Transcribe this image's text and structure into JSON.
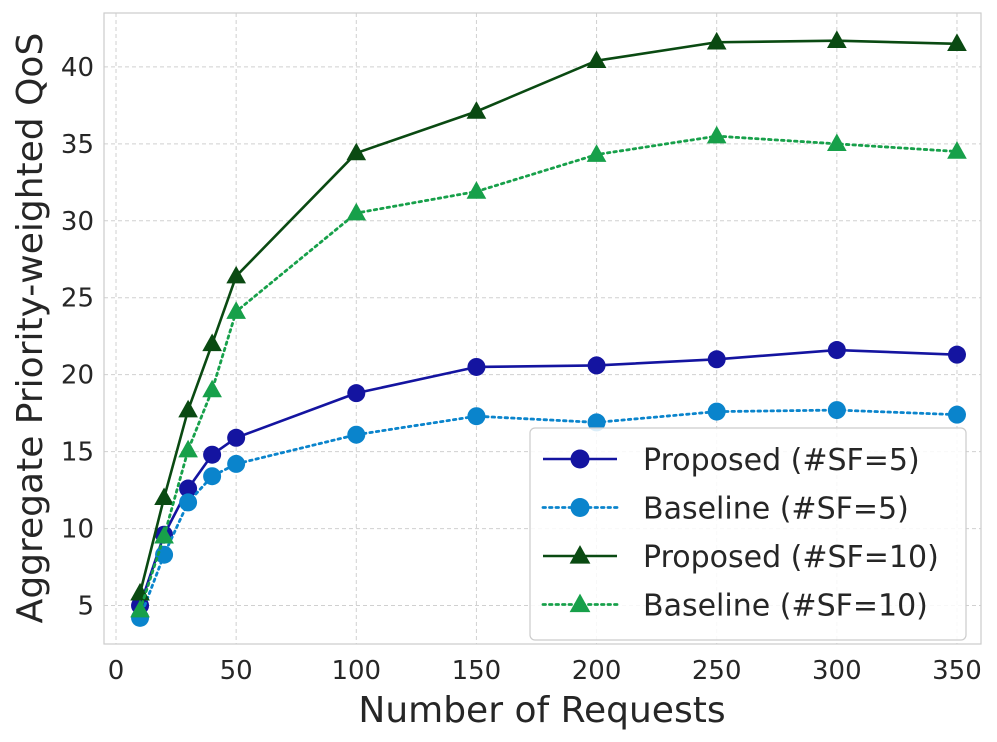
{
  "chart_data": {
    "type": "line",
    "title": "",
    "xlabel": "Number of Requests",
    "ylabel": "Aggregate Priority-weighted QoS",
    "xlim": [
      -5,
      360
    ],
    "ylim": [
      2.5,
      43.5
    ],
    "xticks": [
      0,
      50,
      100,
      150,
      200,
      250,
      300,
      350
    ],
    "yticks": [
      5,
      10,
      15,
      20,
      25,
      30,
      35,
      40
    ],
    "grid": true,
    "legend_position": "lower-right",
    "x": [
      10,
      20,
      30,
      40,
      50,
      100,
      150,
      200,
      250,
      300,
      350
    ],
    "series": [
      {
        "name": "Proposed (#SF=5)",
        "color": "#1414a0",
        "marker": "circle",
        "linestyle": "solid",
        "values": [
          5.0,
          9.6,
          12.6,
          14.8,
          15.9,
          18.8,
          20.5,
          20.6,
          21.0,
          21.6,
          21.3
        ]
      },
      {
        "name": "Baseline (#SF=5)",
        "color": "#0a84cc",
        "marker": "circle",
        "linestyle": "dotted",
        "values": [
          4.2,
          8.3,
          11.7,
          13.4,
          14.2,
          16.1,
          17.3,
          16.9,
          17.6,
          17.7,
          17.4
        ]
      },
      {
        "name": "Proposed (#SF=10)",
        "color": "#0a4a12",
        "marker": "triangle",
        "linestyle": "solid",
        "values": [
          5.8,
          12.0,
          17.7,
          22.0,
          26.4,
          34.4,
          37.1,
          40.4,
          41.6,
          41.7,
          41.5
        ]
      },
      {
        "name": "Baseline (#SF=10)",
        "color": "#17a04a",
        "marker": "triangle",
        "linestyle": "dotted",
        "values": [
          4.7,
          9.5,
          15.1,
          19.0,
          24.1,
          30.5,
          31.9,
          34.3,
          35.5,
          35.0,
          34.5
        ]
      }
    ]
  }
}
